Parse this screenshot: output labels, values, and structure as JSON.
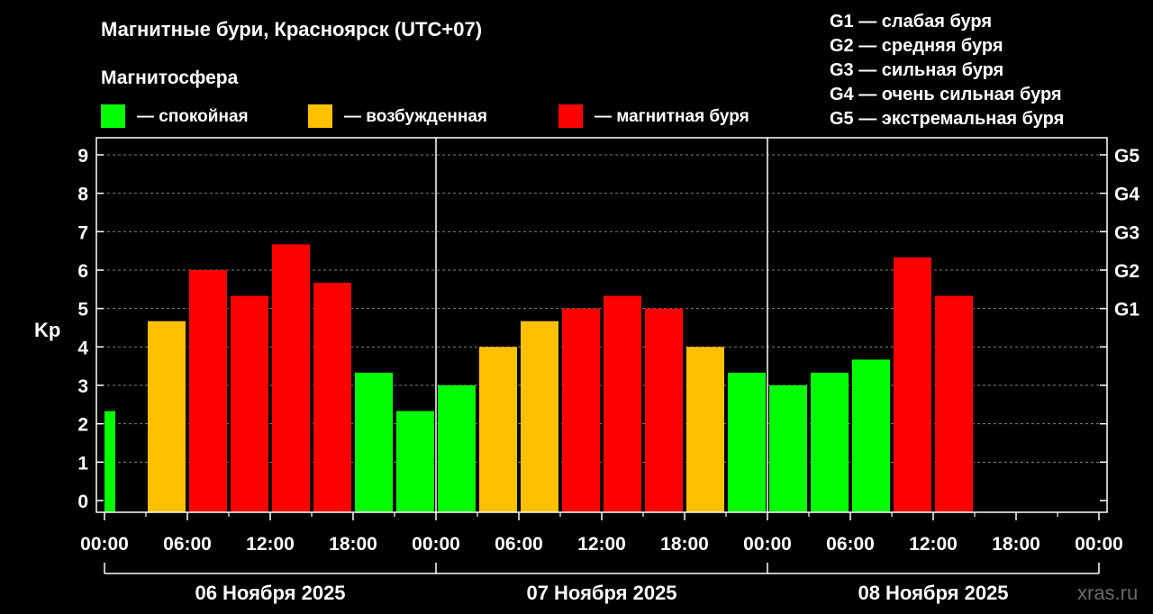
{
  "chart_data": {
    "type": "bar",
    "title": "Магнитные бури, Красноярск (UTC+07)",
    "legend_title": "Магнитосфера",
    "legend": [
      {
        "label": "— спокойная",
        "color": "#00ff00"
      },
      {
        "label": "— возбужденная",
        "color": "#ffc000"
      },
      {
        "label": "— магнитная буря",
        "color": "#ff0000"
      }
    ],
    "g_scale": [
      "G1 — слабая буря",
      "G2 — средняя буря",
      "G3 — сильная буря",
      "G4 — очень сильная буря",
      "G5 — экстремальная буря"
    ],
    "ylabel": "Kp",
    "ylim": [
      0,
      9
    ],
    "y_ticks": [
      "0",
      "1",
      "2",
      "3",
      "4",
      "5",
      "6",
      "7",
      "8",
      "9"
    ],
    "right_ticks": [
      {
        "label": "G1",
        "value": 5
      },
      {
        "label": "G2",
        "value": 6
      },
      {
        "label": "G3",
        "value": 7
      },
      {
        "label": "G4",
        "value": 8
      },
      {
        "label": "G5",
        "value": 9
      }
    ],
    "x_ticks": [
      "00:00",
      "06:00",
      "12:00",
      "18:00",
      "00:00",
      "06:00",
      "12:00",
      "18:00",
      "00:00",
      "06:00",
      "12:00",
      "18:00",
      "00:00"
    ],
    "days": [
      "06 Ноября 2025",
      "07 Ноября 2025",
      "08 Ноября 2025"
    ],
    "grid": true,
    "values": [
      2.33,
      4.67,
      6.0,
      5.33,
      6.67,
      5.67,
      3.33,
      2.33,
      3.0,
      4.0,
      4.67,
      5.0,
      5.33,
      5.0,
      4.0,
      3.33,
      3.0,
      3.33,
      3.67,
      6.33,
      5.33
    ],
    "colors": [
      "#00ff00",
      "#ffc000",
      "#ff0000",
      "#ff0000",
      "#ff0000",
      "#ff0000",
      "#00ff00",
      "#00ff00",
      "#00ff00",
      "#ffc000",
      "#ffc000",
      "#ff0000",
      "#ff0000",
      "#ff0000",
      "#ffc000",
      "#00ff00",
      "#00ff00",
      "#00ff00",
      "#00ff00",
      "#ff0000",
      "#ff0000"
    ],
    "watermark": "xras.ru"
  }
}
